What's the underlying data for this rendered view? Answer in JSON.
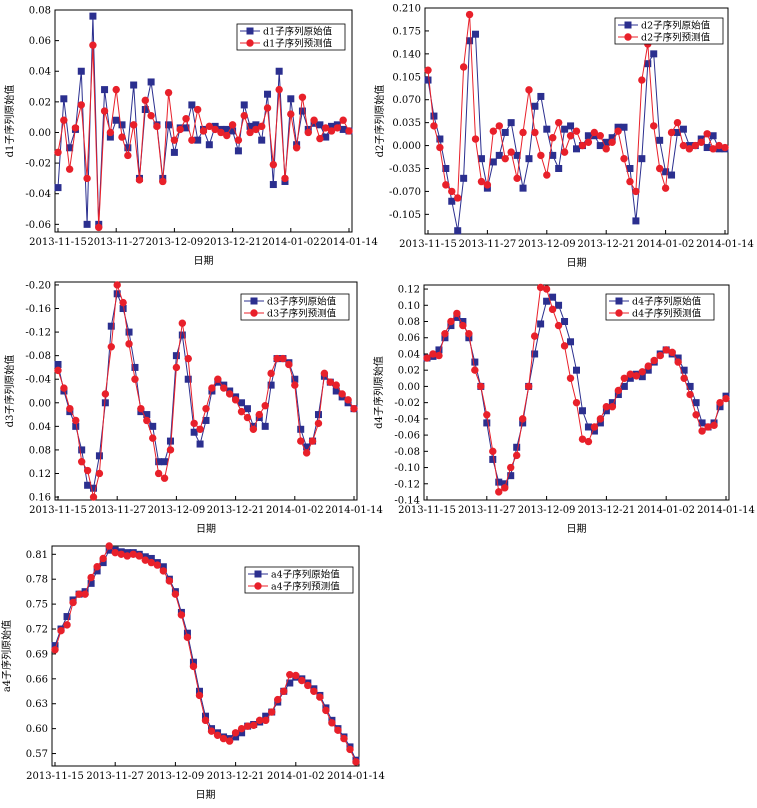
{
  "colors": {
    "original": "#2b2f8f",
    "predicted": "#e8202a"
  },
  "x_ticks": [
    "2013-11-15",
    "2013-11-27",
    "2013-12-09",
    "2013-12-21",
    "2014-01-02",
    "2014-01-14"
  ],
  "chart_data": [
    {
      "type": "line",
      "xlabel": "日期",
      "ylabel": "d1子序列原始值",
      "ylim": [
        -0.065,
        0.08
      ],
      "yticks": [
        "0.08",
        "0.06",
        "0.04",
        "0.02",
        "0.00",
        "-0.02",
        "-0.04",
        "-0.06"
      ],
      "ytick_values": [
        0.08,
        0.06,
        0.04,
        0.02,
        0.0,
        -0.02,
        -0.04,
        -0.06
      ],
      "grid": false,
      "legend_position": "top-right",
      "series": [
        {
          "name": "d1子序列原始值",
          "marker": "square",
          "values": [
            -0.036,
            0.022,
            -0.01,
            0.002,
            0.04,
            -0.06,
            0.076,
            -0.06,
            0.028,
            -0.003,
            0.008,
            0.005,
            -0.01,
            0.031,
            -0.03,
            0.015,
            0.033,
            0.005,
            -0.03,
            0.005,
            -0.013,
            0.003,
            0.003,
            0.018,
            -0.005,
            0.002,
            -0.008,
            0.004,
            0.002,
            0.002,
            0.001,
            -0.012,
            0.018,
            0.004,
            0.005,
            -0.005,
            0.025,
            -0.034,
            0.04,
            -0.032,
            0.022,
            -0.008,
            0.014,
            0.002,
            0.006,
            0.005,
            -0.003,
            0.004,
            0.005,
            0.002,
            0.001
          ]
        },
        {
          "name": "d1子序列预测值",
          "marker": "circle",
          "values": [
            -0.013,
            0.008,
            -0.024,
            0.003,
            0.018,
            -0.03,
            0.057,
            -0.062,
            0.014,
            0.0,
            0.028,
            -0.003,
            -0.015,
            0.005,
            -0.031,
            0.021,
            0.011,
            0.004,
            -0.032,
            0.026,
            -0.005,
            0.002,
            0.009,
            -0.005,
            0.015,
            0.001,
            0.004,
            0.002,
            0.0,
            -0.002,
            0.005,
            -0.005,
            0.011,
            0.0,
            0.002,
            0.004,
            0.016,
            -0.021,
            0.028,
            -0.03,
            0.012,
            -0.01,
            0.023,
            0.0,
            0.008,
            -0.004,
            0.003,
            0.001,
            0.003,
            0.008,
            0.001
          ]
        }
      ]
    },
    {
      "type": "line",
      "xlabel": "日期",
      "ylabel": "d2子序列原始值",
      "ylim": [
        -0.135,
        0.21
      ],
      "yticks": [
        "0.210",
        "0.175",
        "0.140",
        "0.105",
        "0.070",
        "0.035",
        "0.000",
        "-0.035",
        "-0.070",
        "-0.105"
      ],
      "ytick_values": [
        0.21,
        0.175,
        0.14,
        0.105,
        0.07,
        0.035,
        0.0,
        -0.035,
        -0.07,
        -0.105
      ],
      "grid": false,
      "legend_position": "top-right",
      "series": [
        {
          "name": "d2子序列原始值",
          "marker": "square",
          "values": [
            0.1,
            0.045,
            0.01,
            -0.035,
            -0.085,
            -0.13,
            -0.05,
            0.16,
            0.17,
            -0.02,
            -0.065,
            -0.025,
            -0.015,
            0.02,
            0.035,
            -0.015,
            -0.065,
            -0.02,
            0.06,
            0.075,
            0.025,
            -0.015,
            -0.035,
            0.025,
            0.03,
            -0.005,
            0.0,
            0.015,
            0.015,
            0.0,
            0.005,
            0.012,
            0.028,
            0.028,
            -0.035,
            -0.115,
            -0.02,
            0.125,
            0.14,
            0.008,
            -0.04,
            -0.045,
            0.02,
            0.025,
            0.0,
            0.0,
            0.01,
            -0.003,
            0.015,
            -0.005,
            -0.005
          ]
        },
        {
          "name": "d2子序列预测值",
          "marker": "circle",
          "values": [
            0.115,
            0.03,
            -0.003,
            -0.06,
            -0.07,
            -0.08,
            0.12,
            0.2,
            0.01,
            -0.055,
            -0.06,
            0.022,
            0.03,
            -0.02,
            -0.01,
            -0.05,
            0.02,
            0.085,
            0.02,
            -0.015,
            -0.045,
            0.012,
            0.035,
            -0.01,
            0.015,
            0.022,
            0.0,
            0.005,
            0.02,
            0.015,
            -0.005,
            0.005,
            0.022,
            -0.02,
            -0.055,
            -0.07,
            0.1,
            0.155,
            0.03,
            -0.035,
            -0.065,
            0.02,
            0.035,
            0.0,
            -0.005,
            0.0,
            0.005,
            0.018,
            -0.005,
            0.0,
            -0.003
          ]
        }
      ]
    },
    {
      "type": "line",
      "xlabel": "日期",
      "ylabel": "d3子序列原始值",
      "ylim": [
        0.165,
        -0.205
      ],
      "yticks": [
        "-0.20",
        "-0.16",
        "-0.12",
        "-0.08",
        "-0.04",
        "0.00",
        "0.04",
        "0.08",
        "0.12",
        "0.16"
      ],
      "ytick_values": [
        -0.2,
        -0.16,
        -0.12,
        -0.08,
        -0.04,
        0.0,
        0.04,
        0.08,
        0.12,
        0.16
      ],
      "grid": false,
      "legend_position": "top-right",
      "series": [
        {
          "name": "d3子序列原始值",
          "marker": "square",
          "values": [
            -0.065,
            -0.02,
            0.015,
            0.04,
            0.08,
            0.14,
            0.145,
            0.09,
            0.0,
            -0.13,
            -0.185,
            -0.16,
            -0.12,
            -0.06,
            0.015,
            0.02,
            0.04,
            0.1,
            0.1,
            0.065,
            -0.08,
            -0.115,
            -0.04,
            0.05,
            0.07,
            0.03,
            -0.02,
            -0.035,
            -0.03,
            -0.02,
            -0.01,
            0.0,
            0.01,
            0.04,
            0.025,
            0.04,
            -0.03,
            -0.075,
            -0.075,
            -0.068,
            -0.04,
            0.045,
            0.075,
            0.065,
            0.02,
            -0.045,
            -0.035,
            -0.02,
            -0.01,
            0.0,
            0.01
          ]
        },
        {
          "name": "d3子序列预测值",
          "marker": "circle",
          "values": [
            -0.055,
            -0.025,
            0.01,
            0.03,
            0.1,
            0.115,
            0.16,
            0.12,
            -0.015,
            -0.095,
            -0.2,
            -0.17,
            -0.1,
            -0.04,
            0.01,
            0.03,
            0.06,
            0.12,
            0.128,
            0.08,
            -0.06,
            -0.135,
            -0.075,
            0.035,
            0.045,
            0.01,
            -0.025,
            -0.04,
            -0.025,
            -0.015,
            -0.005,
            0.015,
            0.025,
            0.045,
            0.02,
            0.005,
            -0.05,
            -0.075,
            -0.075,
            -0.065,
            -0.03,
            0.065,
            0.085,
            0.065,
            0.035,
            -0.05,
            -0.035,
            -0.03,
            -0.015,
            -0.005,
            0.01
          ]
        }
      ]
    },
    {
      "type": "line",
      "xlabel": "日期",
      "ylabel": "d4子序列原始值",
      "ylim": [
        -0.14,
        0.125
      ],
      "yticks": [
        "0.12",
        "0.10",
        "0.08",
        "0.06",
        "0.04",
        "0.02",
        "0.00",
        "-0.02",
        "-0.04",
        "-0.06",
        "-0.08",
        "-0.10",
        "-0.12",
        "-0.14"
      ],
      "ytick_values": [
        0.12,
        0.1,
        0.08,
        0.06,
        0.04,
        0.02,
        0.0,
        -0.02,
        -0.04,
        -0.06,
        -0.08,
        -0.1,
        -0.12,
        -0.14
      ],
      "grid": false,
      "legend_position": "top-right",
      "series": [
        {
          "name": "d4子序列原始值",
          "marker": "square",
          "values": [
            0.035,
            0.037,
            0.045,
            0.06,
            0.075,
            0.085,
            0.08,
            0.06,
            0.03,
            0.0,
            -0.045,
            -0.09,
            -0.118,
            -0.12,
            -0.11,
            -0.075,
            -0.045,
            0.0,
            0.04,
            0.077,
            0.105,
            0.11,
            0.1,
            0.08,
            0.055,
            0.02,
            -0.03,
            -0.05,
            -0.055,
            -0.045,
            -0.03,
            -0.02,
            -0.01,
            0.0,
            0.01,
            0.015,
            0.012,
            0.02,
            0.03,
            0.04,
            0.045,
            0.04,
            0.035,
            0.02,
            0.0,
            -0.02,
            -0.045,
            -0.05,
            -0.045,
            -0.025,
            -0.012
          ]
        },
        {
          "name": "d4子序列预测值",
          "marker": "circle",
          "values": [
            0.035,
            0.04,
            0.038,
            0.065,
            0.08,
            0.09,
            0.075,
            0.065,
            0.02,
            0.0,
            -0.035,
            -0.08,
            -0.13,
            -0.125,
            -0.1,
            -0.085,
            -0.04,
            0.0,
            0.062,
            0.122,
            0.12,
            0.095,
            0.075,
            0.05,
            0.01,
            -0.02,
            -0.065,
            -0.068,
            -0.05,
            -0.04,
            -0.025,
            -0.025,
            -0.005,
            0.01,
            0.015,
            0.013,
            0.018,
            0.025,
            0.032,
            0.038,
            0.045,
            0.042,
            0.03,
            0.01,
            -0.01,
            -0.035,
            -0.055,
            -0.05,
            -0.048,
            -0.02,
            -0.015
          ]
        }
      ]
    },
    {
      "type": "line",
      "xlabel": "日期",
      "ylabel": "a4子序列原始值",
      "ylim": [
        0.555,
        0.82
      ],
      "yticks": [
        "0.81",
        "0.78",
        "0.75",
        "0.72",
        "0.69",
        "0.66",
        "0.63",
        "0.60",
        "0.57"
      ],
      "ytick_values": [
        0.81,
        0.78,
        0.75,
        0.72,
        0.69,
        0.66,
        0.63,
        0.6,
        0.57
      ],
      "grid": false,
      "legend_position": "top-right",
      "series": [
        {
          "name": "a4子序列原始值",
          "marker": "square",
          "values": [
            0.7,
            0.72,
            0.735,
            0.755,
            0.762,
            0.765,
            0.775,
            0.79,
            0.8,
            0.815,
            0.815,
            0.813,
            0.812,
            0.812,
            0.81,
            0.807,
            0.805,
            0.8,
            0.795,
            0.78,
            0.765,
            0.74,
            0.715,
            0.68,
            0.645,
            0.615,
            0.6,
            0.595,
            0.59,
            0.588,
            0.59,
            0.595,
            0.603,
            0.605,
            0.608,
            0.615,
            0.62,
            0.632,
            0.645,
            0.655,
            0.662,
            0.66,
            0.655,
            0.648,
            0.64,
            0.625,
            0.61,
            0.6,
            0.59,
            0.578,
            0.562
          ]
        },
        {
          "name": "a4子序列预测值",
          "marker": "circle",
          "values": [
            0.695,
            0.718,
            0.725,
            0.752,
            0.762,
            0.762,
            0.782,
            0.795,
            0.805,
            0.82,
            0.812,
            0.81,
            0.808,
            0.81,
            0.808,
            0.803,
            0.8,
            0.797,
            0.79,
            0.778,
            0.762,
            0.737,
            0.71,
            0.675,
            0.64,
            0.61,
            0.597,
            0.592,
            0.588,
            0.585,
            0.595,
            0.6,
            0.603,
            0.604,
            0.61,
            0.61,
            0.62,
            0.635,
            0.645,
            0.665,
            0.664,
            0.658,
            0.652,
            0.645,
            0.638,
            0.622,
            0.607,
            0.598,
            0.588,
            0.575,
            0.56
          ]
        }
      ]
    }
  ]
}
